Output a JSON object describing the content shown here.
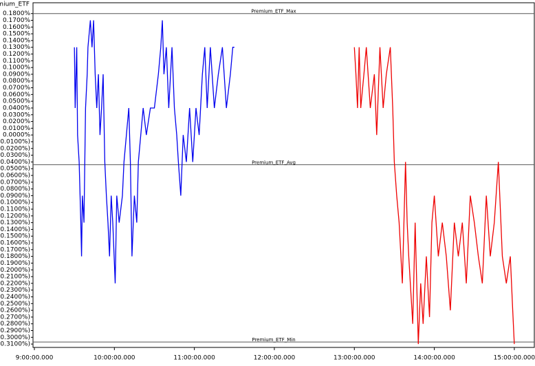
{
  "chart_data": {
    "type": "line",
    "title": "Premium_ETF",
    "x_series_note_free": null,
    "xlim": [
      9,
      15.25
    ],
    "ylim": [
      -0.315,
      0.195
    ],
    "xticks": [
      {
        "value": 9,
        "label": "9:00:00.000"
      },
      {
        "value": 10,
        "label": "10:00:00.000"
      },
      {
        "value": 11,
        "label": "11:00:00.000"
      },
      {
        "value": 12,
        "label": "12:00:00.000"
      },
      {
        "value": 13,
        "label": "13:00:00.000"
      },
      {
        "value": 14,
        "label": "14:00:00.000"
      },
      {
        "value": 15,
        "label": "15:00:00.000"
      }
    ],
    "yticks": [
      {
        "value": 0.18,
        "label": "0.1800%"
      },
      {
        "value": 0.17,
        "label": "0.1700%"
      },
      {
        "value": 0.16,
        "label": "0.1600%"
      },
      {
        "value": 0.15,
        "label": "0.1500%"
      },
      {
        "value": 0.14,
        "label": "0.1400%"
      },
      {
        "value": 0.13,
        "label": "0.1300%"
      },
      {
        "value": 0.12,
        "label": "0.1200%"
      },
      {
        "value": 0.11,
        "label": "0.1100%"
      },
      {
        "value": 0.1,
        "label": "0.1000%"
      },
      {
        "value": 0.09,
        "label": "0.0900%"
      },
      {
        "value": 0.08,
        "label": "0.0800%"
      },
      {
        "value": 0.07,
        "label": "0.0700%"
      },
      {
        "value": 0.06,
        "label": "0.0600%"
      },
      {
        "value": 0.05,
        "label": "0.0500%"
      },
      {
        "value": 0.04,
        "label": "0.0400%"
      },
      {
        "value": 0.03,
        "label": "0.0300%"
      },
      {
        "value": 0.02,
        "label": "0.0200%"
      },
      {
        "value": 0.01,
        "label": "0.0100%"
      },
      {
        "value": 0,
        "label": "0.0000%"
      },
      {
        "value": -0.01,
        "label": "(0.0100%)"
      },
      {
        "value": -0.02,
        "label": "(0.0200%)"
      },
      {
        "value": -0.03,
        "label": "(0.0300%)"
      },
      {
        "value": -0.04,
        "label": "(0.0400%)"
      },
      {
        "value": -0.05,
        "label": "(0.0500%)"
      },
      {
        "value": -0.06,
        "label": "(0.0600%)"
      },
      {
        "value": -0.07,
        "label": "(0.0700%)"
      },
      {
        "value": -0.08,
        "label": "(0.0800%)"
      },
      {
        "value": -0.09,
        "label": "(0.0900%)"
      },
      {
        "value": -0.1,
        "label": "(0.1000%)"
      },
      {
        "value": -0.11,
        "label": "(0.1100%)"
      },
      {
        "value": -0.12,
        "label": "(0.1200%)"
      },
      {
        "value": -0.13,
        "label": "(0.1300%)"
      },
      {
        "value": -0.14,
        "label": "(0.1400%)"
      },
      {
        "value": -0.15,
        "label": "(0.1500%)"
      },
      {
        "value": -0.16,
        "label": "(0.1600%)"
      },
      {
        "value": -0.17,
        "label": "(0.1700%)"
      },
      {
        "value": -0.18,
        "label": "(0.1800%)"
      },
      {
        "value": -0.19,
        "label": "(0.1900%)"
      },
      {
        "value": -0.2,
        "label": "(0.2000%)"
      },
      {
        "value": -0.21,
        "label": "(0.2100%)"
      },
      {
        "value": -0.22,
        "label": "(0.2200%)"
      },
      {
        "value": -0.23,
        "label": "(0.2300%)"
      },
      {
        "value": -0.24,
        "label": "(0.2400%)"
      },
      {
        "value": -0.25,
        "label": "(0.2500%)"
      },
      {
        "value": -0.26,
        "label": "(0.2600%)"
      },
      {
        "value": -0.27,
        "label": "(0.2700%)"
      },
      {
        "value": -0.28,
        "label": "(0.2800%)"
      },
      {
        "value": -0.29,
        "label": "(0.2900%)"
      },
      {
        "value": -0.3,
        "label": "(0.3000%)"
      },
      {
        "value": -0.31,
        "label": "(0.3100%)"
      }
    ],
    "reference_lines": [
      {
        "name": "Premium_ETF_Max",
        "value": 0.18,
        "color": "#555555"
      },
      {
        "name": "Premium_ETF_Avg",
        "value": -0.044,
        "color": "#555555"
      },
      {
        "name": "Premium_ETF_Min",
        "value": -0.307,
        "color": "#555555"
      }
    ],
    "series": [
      {
        "color": "#0000ee",
        "x": [
          9.5,
          9.51,
          9.53,
          9.54,
          9.56,
          9.58,
          9.59,
          9.6,
          9.62,
          9.64,
          9.66,
          9.67,
          9.7,
          9.72,
          9.74,
          9.76,
          9.78,
          9.8,
          9.82,
          9.84,
          9.86,
          9.88,
          9.9,
          9.92,
          9.94,
          9.96,
          9.98,
          10.01,
          10.03,
          10.06,
          10.1,
          10.12,
          10.18,
          10.2,
          10.22,
          10.25,
          10.28,
          10.3,
          10.33,
          10.36,
          10.4,
          10.45,
          10.5,
          10.55,
          10.58,
          10.6,
          10.62,
          10.65,
          10.68,
          10.72,
          10.75,
          10.78,
          10.8,
          10.83,
          10.86,
          10.9,
          10.94,
          10.98,
          11.02,
          11.06,
          11.1,
          11.13,
          11.16,
          11.2,
          11.25,
          11.3,
          11.35,
          11.4,
          11.45,
          11.48,
          11.5
        ],
        "values": [
          0.13,
          0.04,
          0.13,
          0,
          -0.04,
          -0.13,
          -0.18,
          -0.09,
          -0.13,
          0.04,
          0.09,
          0.13,
          0.17,
          0.13,
          0.17,
          0.09,
          0.04,
          0.09,
          0,
          0.04,
          0.09,
          -0.04,
          -0.09,
          -0.13,
          -0.18,
          -0.09,
          -0.13,
          -0.22,
          -0.09,
          -0.13,
          -0.09,
          -0.04,
          0.04,
          -0.04,
          -0.18,
          -0.09,
          -0.13,
          -0.04,
          0,
          0.04,
          0,
          0.04,
          0.04,
          0.09,
          0.13,
          0.17,
          0.09,
          0.13,
          0.04,
          0.13,
          0.04,
          0,
          -0.04,
          -0.09,
          0,
          -0.04,
          0.04,
          -0.04,
          0.04,
          0,
          0.09,
          0.13,
          0.04,
          0.13,
          0.04,
          0.09,
          0.13,
          0.04,
          0.09,
          0.13,
          0.13
        ]
      },
      {
        "color": "#ee0000",
        "x": [
          13,
          13.02,
          13.04,
          13.06,
          13.08,
          13.12,
          13.15,
          13.2,
          13.25,
          13.28,
          13.32,
          13.36,
          13.4,
          13.45,
          13.48,
          13.5,
          13.53,
          13.56,
          13.6,
          13.62,
          13.64,
          13.66,
          13.68,
          13.7,
          13.73,
          13.76,
          13.78,
          13.8,
          13.83,
          13.86,
          13.9,
          13.94,
          13.97,
          14,
          14.05,
          14.1,
          14.15,
          14.2,
          14.25,
          14.3,
          14.35,
          14.4,
          14.45,
          14.5,
          14.55,
          14.6,
          14.65,
          14.7,
          14.75,
          14.8,
          14.85,
          14.9,
          14.95,
          14.98,
          15
        ],
        "values": [
          0.13,
          0.09,
          0.04,
          0.13,
          0.04,
          0.09,
          0.13,
          0.04,
          0.09,
          0,
          0.13,
          0.04,
          0.09,
          0.13,
          0.04,
          -0.04,
          -0.09,
          -0.13,
          -0.22,
          -0.13,
          -0.04,
          -0.13,
          -0.18,
          -0.22,
          -0.28,
          -0.13,
          -0.22,
          -0.31,
          -0.22,
          -0.28,
          -0.18,
          -0.27,
          -0.13,
          -0.09,
          -0.18,
          -0.13,
          -0.18,
          -0.26,
          -0.13,
          -0.18,
          -0.13,
          -0.22,
          -0.09,
          -0.13,
          -0.18,
          -0.22,
          -0.09,
          -0.18,
          -0.13,
          -0.04,
          -0.18,
          -0.22,
          -0.18,
          -0.26,
          -0.31
        ]
      }
    ]
  }
}
